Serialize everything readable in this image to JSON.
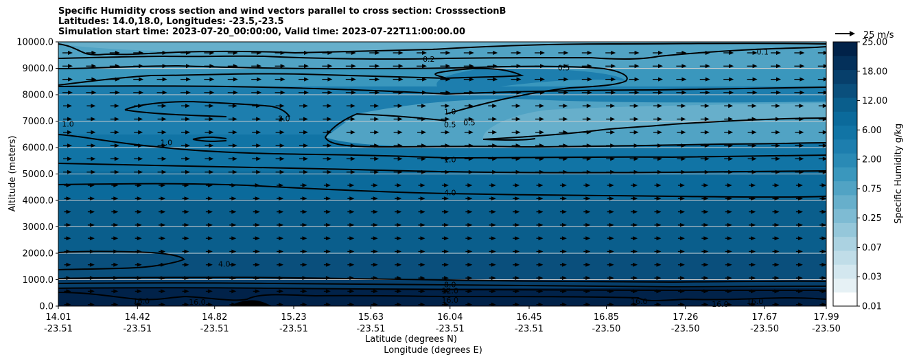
{
  "title_lines": [
    "Specific Humidity cross section and wind vectors parallel to cross section: CrosssectionB",
    "Latitudes: 14.0,18.0, Longitudes: -23.5,-23.5",
    "Simulation start time: 2023-07-20_00:00:00, Valid time: 2023-07-22T11:00:00.00"
  ],
  "colors": {
    "background_mid": "#2a8ab5",
    "contour": "#000000",
    "vector": "#000000",
    "gridline": "#cfcfcf"
  },
  "chart_data": {
    "type": "heatmap",
    "ylabel": "Altitude (meters)",
    "xlabel_lines": [
      "Latitude (degrees N)",
      "Longitude (degrees E)"
    ],
    "ylim": [
      0,
      10000
    ],
    "yticks": [
      "0.0",
      "1000.0",
      "2000.0",
      "3000.0",
      "4000.0",
      "5000.0",
      "6000.0",
      "7000.0",
      "8000.0",
      "9000.0",
      "10000.0"
    ],
    "yticks_values": [
      0,
      1000,
      2000,
      3000,
      4000,
      5000,
      6000,
      7000,
      8000,
      9000,
      10000
    ],
    "xlim": [
      14.01,
      17.99
    ],
    "xticks": [
      {
        "lat": "14.01",
        "lon": "-23.51"
      },
      {
        "lat": "14.42",
        "lon": "-23.51"
      },
      {
        "lat": "14.82",
        "lon": "-23.51"
      },
      {
        "lat": "15.23",
        "lon": "-23.51"
      },
      {
        "lat": "15.63",
        "lon": "-23.51"
      },
      {
        "lat": "16.04",
        "lon": "-23.51"
      },
      {
        "lat": "16.45",
        "lon": "-23.51"
      },
      {
        "lat": "16.85",
        "lon": "-23.50"
      },
      {
        "lat": "17.26",
        "lon": "-23.50"
      },
      {
        "lat": "17.67",
        "lon": "-23.50"
      },
      {
        "lat": "17.99",
        "lon": "-23.50"
      }
    ],
    "grid": "horizontal",
    "colorbar": {
      "label": "Specific Humidity g/kg",
      "tick_labels": [
        "0.01",
        "0.03",
        "0.07",
        "0.25",
        "0.75",
        "2.00",
        "6.00",
        "12.00",
        "18.00",
        "25.00"
      ],
      "levels": [
        0.01,
        0.02,
        0.03,
        0.05,
        0.07,
        0.1,
        0.25,
        0.5,
        0.75,
        1,
        2,
        4,
        6,
        8,
        12,
        14,
        18,
        22,
        25
      ],
      "colors": [
        "#ffffff",
        "#e6f1f5",
        "#d3e7ef",
        "#c0dde8",
        "#abd2e1",
        "#95c7da",
        "#7ebbd3",
        "#67afcb",
        "#51a3c4",
        "#3a97bd",
        "#2a8ab5",
        "#1d7eae",
        "#1174a5",
        "#0b6a9b",
        "#0a5e8c",
        "#0a4f7c",
        "#073f6b",
        "#04305a",
        "#012249"
      ]
    },
    "vector_key": {
      "label": "25 m/s",
      "speed": 25
    },
    "contour_labels": [
      {
        "text": "0.2",
        "lat": 15.93,
        "alt": 9350
      },
      {
        "text": "0.1",
        "lat": 17.66,
        "alt": 9620
      },
      {
        "text": "0.5",
        "lat": 16.63,
        "alt": 9030
      },
      {
        "text": "1.0",
        "lat": 16.04,
        "alt": 7370
      },
      {
        "text": "0.5",
        "lat": 16.04,
        "alt": 6870
      },
      {
        "text": "0.5",
        "lat": 16.14,
        "alt": 6950
      },
      {
        "text": "1.0",
        "lat": 14.06,
        "alt": 6900
      },
      {
        "text": "2.0",
        "lat": 15.18,
        "alt": 7100
      },
      {
        "text": "1.0",
        "lat": 14.57,
        "alt": 6200
      },
      {
        "text": "1.0",
        "lat": 16.04,
        "alt": 5550
      },
      {
        "text": "4.0",
        "lat": 16.04,
        "alt": 4300
      },
      {
        "text": "4.0",
        "lat": 14.87,
        "alt": 1600
      },
      {
        "text": "8.0",
        "lat": 16.04,
        "alt": 820
      },
      {
        "text": "12.0",
        "lat": 16.04,
        "alt": 590
      },
      {
        "text": "16.0",
        "lat": 16.04,
        "alt": 240
      },
      {
        "text": "16.0",
        "lat": 14.44,
        "alt": 200
      },
      {
        "text": "16.0",
        "lat": 14.73,
        "alt": 160
      },
      {
        "text": "16.0",
        "lat": 17.02,
        "alt": 180
      },
      {
        "text": "16.0",
        "lat": 17.44,
        "alt": 80
      },
      {
        "text": "16.0",
        "lat": 17.62,
        "alt": 180
      }
    ]
  }
}
